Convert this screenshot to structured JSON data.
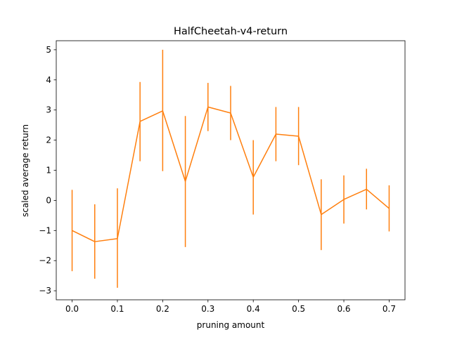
{
  "chart_data": {
    "type": "line",
    "title": "HalfCheetah-v4-return",
    "xlabel": "pruning amount",
    "ylabel": "scaled average return",
    "xlim": [
      -0.035,
      0.735
    ],
    "ylim": [
      -3.3,
      5.3
    ],
    "x_ticks": [
      0.0,
      0.1,
      0.2,
      0.3,
      0.4,
      0.5,
      0.6,
      0.7
    ],
    "x_tick_labels": [
      "0.0",
      "0.1",
      "0.2",
      "0.3",
      "0.4",
      "0.5",
      "0.6",
      "0.7"
    ],
    "y_ticks": [
      -3,
      -2,
      -1,
      0,
      1,
      2,
      3,
      4,
      5
    ],
    "y_tick_labels": [
      "−3",
      "−2",
      "−1",
      "0",
      "1",
      "2",
      "3",
      "4",
      "5"
    ],
    "grid": false,
    "series": [
      {
        "color": "#ff7f0e",
        "x": [
          0.0,
          0.05,
          0.1,
          0.15,
          0.2,
          0.25,
          0.3,
          0.35,
          0.4,
          0.45,
          0.5,
          0.55,
          0.6,
          0.65,
          0.7
        ],
        "y": [
          -1.0,
          -1.37,
          -1.27,
          2.62,
          2.97,
          0.63,
          3.1,
          2.9,
          0.77,
          2.2,
          2.13,
          -0.47,
          0.03,
          0.37,
          -0.27
        ],
        "yerr_low": [
          -2.35,
          -2.6,
          -2.9,
          1.3,
          0.97,
          -1.55,
          2.3,
          2.0,
          -0.47,
          1.3,
          1.17,
          -1.65,
          -0.77,
          -0.3,
          -1.03
        ],
        "yerr_high": [
          0.35,
          -0.13,
          0.4,
          3.93,
          5.0,
          2.8,
          3.9,
          3.8,
          2.0,
          3.1,
          3.1,
          0.7,
          0.83,
          1.05,
          0.5
        ]
      }
    ]
  }
}
